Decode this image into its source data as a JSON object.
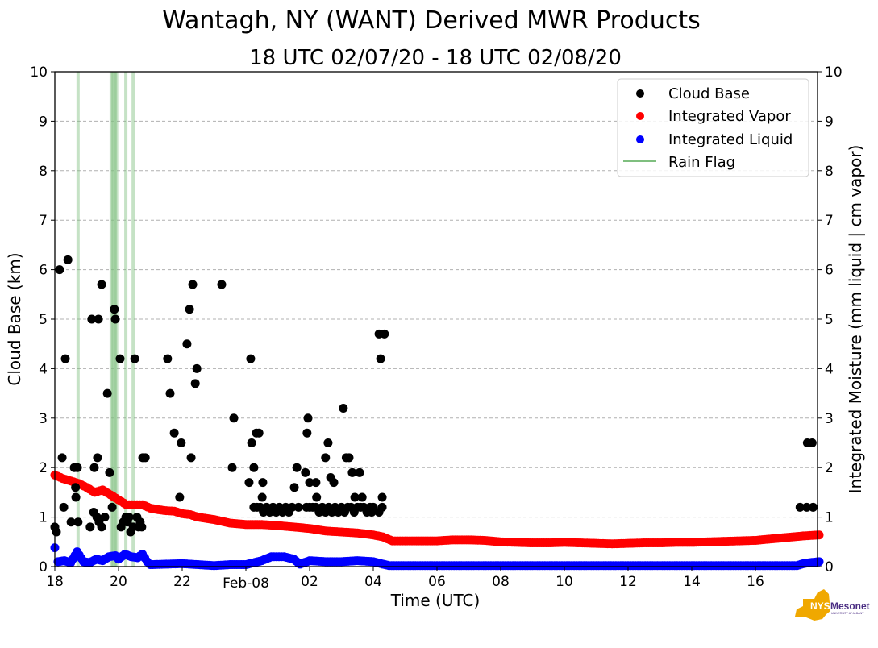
{
  "chart_data": {
    "type": "scatter",
    "title": "Wantagh, NY (WANT) Derived MWR Products",
    "subtitle": "18 UTC 02/07/20 - 18 UTC 02/08/20",
    "xlabel": "Time (UTC)",
    "ylabel_left": "Cloud Base (km)",
    "ylabel_right": "Integrated Moisture (mm liquid | cm vapor)",
    "x_unit": "hours after 18 UTC 02/07/20",
    "xlim": [
      0,
      24
    ],
    "ylim_left": [
      0,
      10
    ],
    "ylim_right": [
      0,
      10
    ],
    "x_ticks": [
      {
        "value": 0,
        "label": "18"
      },
      {
        "value": 2,
        "label": "20"
      },
      {
        "value": 4,
        "label": "22"
      },
      {
        "value": 6,
        "label": "Feb-08"
      },
      {
        "value": 8,
        "label": "02"
      },
      {
        "value": 10,
        "label": "04"
      },
      {
        "value": 12,
        "label": "06"
      },
      {
        "value": 14,
        "label": "08"
      },
      {
        "value": 16,
        "label": "10"
      },
      {
        "value": 18,
        "label": "12"
      },
      {
        "value": 20,
        "label": "14"
      },
      {
        "value": 22,
        "label": "16"
      }
    ],
    "y_ticks": [
      0,
      1,
      2,
      3,
      4,
      5,
      6,
      7,
      8,
      9,
      10
    ],
    "grid": "horizontal dashed",
    "legend_position": "top-right",
    "legend": [
      {
        "label": "Cloud Base",
        "kind": "marker",
        "color": "#000000"
      },
      {
        "label": "Integrated Vapor",
        "kind": "marker",
        "color": "#ff0000"
      },
      {
        "label": "Integrated Liquid",
        "kind": "marker",
        "color": "#0000ff"
      },
      {
        "label": "Rain Flag",
        "kind": "line",
        "color": "#7fbf7f"
      }
    ],
    "rain_flag_hours": [
      0.73,
      1.77,
      1.82,
      1.86,
      1.9,
      1.94,
      2.23,
      2.46
    ],
    "series": [
      {
        "name": "Cloud Base",
        "color": "#000000",
        "axis": "left",
        "points": [
          [
            0.0,
            0.8
          ],
          [
            0.05,
            0.7
          ],
          [
            0.15,
            6.0
          ],
          [
            0.23,
            2.2
          ],
          [
            0.28,
            1.2
          ],
          [
            0.33,
            4.2
          ],
          [
            0.41,
            6.2
          ],
          [
            0.51,
            0.9
          ],
          [
            0.61,
            2.0
          ],
          [
            0.65,
            1.6
          ],
          [
            0.66,
            1.4
          ],
          [
            0.71,
            2.0
          ],
          [
            0.73,
            0.9
          ],
          [
            1.11,
            0.8
          ],
          [
            1.16,
            5.0
          ],
          [
            1.24,
            2.0
          ],
          [
            1.22,
            1.1
          ],
          [
            1.34,
            2.2
          ],
          [
            1.32,
            1.0
          ],
          [
            1.37,
            5.0
          ],
          [
            1.39,
            0.9
          ],
          [
            1.47,
            5.7
          ],
          [
            1.47,
            0.8
          ],
          [
            1.57,
            1.0
          ],
          [
            1.65,
            3.5
          ],
          [
            1.72,
            1.9
          ],
          [
            1.8,
            1.2
          ],
          [
            1.87,
            5.2
          ],
          [
            1.9,
            5.0
          ],
          [
            2.05,
            4.2
          ],
          [
            2.08,
            0.8
          ],
          [
            2.15,
            0.9
          ],
          [
            2.23,
            1.0
          ],
          [
            2.28,
            0.9
          ],
          [
            2.33,
            1.0
          ],
          [
            2.38,
            0.7
          ],
          [
            2.46,
            0.8
          ],
          [
            2.51,
            4.2
          ],
          [
            2.58,
            1.0
          ],
          [
            2.63,
            0.8
          ],
          [
            2.68,
            0.9
          ],
          [
            2.73,
            0.8
          ],
          [
            2.76,
            2.2
          ],
          [
            2.84,
            2.2
          ],
          [
            3.54,
            4.2
          ],
          [
            3.62,
            3.5
          ],
          [
            3.75,
            2.7
          ],
          [
            3.92,
            1.4
          ],
          [
            3.97,
            2.5
          ],
          [
            4.15,
            4.5
          ],
          [
            4.23,
            5.2
          ],
          [
            4.28,
            2.2
          ],
          [
            4.33,
            5.7
          ],
          [
            4.41,
            3.7
          ],
          [
            4.46,
            4.0
          ],
          [
            5.24,
            5.7
          ],
          [
            5.57,
            2.0
          ],
          [
            5.62,
            3.0
          ],
          [
            6.1,
            1.7
          ],
          [
            6.15,
            4.2
          ],
          [
            6.18,
            2.5
          ],
          [
            6.25,
            2.0
          ],
          [
            6.33,
            2.7
          ],
          [
            6.41,
            2.7
          ],
          [
            6.51,
            1.4
          ],
          [
            6.53,
            1.7
          ],
          [
            6.25,
            1.2
          ],
          [
            6.35,
            1.2
          ],
          [
            6.45,
            1.2
          ],
          [
            6.55,
            1.1
          ],
          [
            6.65,
            1.2
          ],
          [
            6.75,
            1.1
          ],
          [
            6.85,
            1.2
          ],
          [
            6.95,
            1.1
          ],
          [
            7.05,
            1.2
          ],
          [
            7.15,
            1.1
          ],
          [
            7.25,
            1.2
          ],
          [
            7.35,
            1.1
          ],
          [
            7.45,
            1.2
          ],
          [
            7.52,
            1.6
          ],
          [
            7.6,
            2.0
          ],
          [
            7.65,
            1.2
          ],
          [
            7.87,
            1.9
          ],
          [
            7.95,
            3.0
          ],
          [
            7.92,
            2.7
          ],
          [
            8.0,
            1.7
          ],
          [
            7.9,
            1.2
          ],
          [
            8.0,
            1.2
          ],
          [
            8.1,
            1.2
          ],
          [
            8.2,
            1.2
          ],
          [
            8.3,
            1.1
          ],
          [
            8.2,
            1.7
          ],
          [
            8.22,
            1.4
          ],
          [
            8.4,
            1.2
          ],
          [
            8.5,
            1.1
          ],
          [
            8.6,
            1.2
          ],
          [
            8.7,
            1.1
          ],
          [
            8.8,
            1.2
          ],
          [
            8.5,
            2.2
          ],
          [
            8.58,
            2.5
          ],
          [
            8.66,
            1.8
          ],
          [
            8.76,
            1.7
          ],
          [
            8.9,
            1.1
          ],
          [
            9.0,
            1.2
          ],
          [
            9.06,
            3.2
          ],
          [
            9.1,
            1.1
          ],
          [
            9.15,
            2.2
          ],
          [
            9.24,
            2.2
          ],
          [
            9.2,
            1.2
          ],
          [
            9.3,
            1.2
          ],
          [
            9.34,
            1.9
          ],
          [
            9.4,
            1.1
          ],
          [
            9.57,
            1.9
          ],
          [
            9.5,
            1.2
          ],
          [
            9.42,
            1.4
          ],
          [
            9.65,
            1.4
          ],
          [
            9.6,
            1.2
          ],
          [
            9.7,
            1.2
          ],
          [
            9.8,
            1.1
          ],
          [
            9.9,
            1.2
          ],
          [
            9.95,
            1.1
          ],
          [
            10.0,
            1.2
          ],
          [
            10.18,
            1.1
          ],
          [
            10.18,
            4.7
          ],
          [
            10.35,
            4.7
          ],
          [
            10.23,
            4.2
          ],
          [
            10.28,
            1.4
          ],
          [
            10.28,
            1.2
          ],
          [
            23.4,
            1.2
          ],
          [
            23.63,
            2.5
          ],
          [
            23.78,
            2.5
          ],
          [
            23.61,
            1.2
          ],
          [
            23.81,
            1.2
          ]
        ]
      },
      {
        "name": "Integrated Vapor",
        "color": "#ff0000",
        "axis": "right",
        "points": [
          [
            0.0,
            1.85
          ],
          [
            0.25,
            1.78
          ],
          [
            0.5,
            1.73
          ],
          [
            0.75,
            1.68
          ],
          [
            1.0,
            1.6
          ],
          [
            1.25,
            1.5
          ],
          [
            1.5,
            1.55
          ],
          [
            1.75,
            1.45
          ],
          [
            2.0,
            1.35
          ],
          [
            2.25,
            1.25
          ],
          [
            2.5,
            1.25
          ],
          [
            2.75,
            1.25
          ],
          [
            3.0,
            1.18
          ],
          [
            3.25,
            1.15
          ],
          [
            3.5,
            1.13
          ],
          [
            3.75,
            1.12
          ],
          [
            4.0,
            1.07
          ],
          [
            4.25,
            1.05
          ],
          [
            4.5,
            1.0
          ],
          [
            5.0,
            0.95
          ],
          [
            5.5,
            0.88
          ],
          [
            6.0,
            0.85
          ],
          [
            6.5,
            0.85
          ],
          [
            7.0,
            0.83
          ],
          [
            7.5,
            0.8
          ],
          [
            8.0,
            0.77
          ],
          [
            8.5,
            0.72
          ],
          [
            9.0,
            0.7
          ],
          [
            9.5,
            0.68
          ],
          [
            10.0,
            0.64
          ],
          [
            10.3,
            0.6
          ],
          [
            10.6,
            0.52
          ],
          [
            11.0,
            0.52
          ],
          [
            11.5,
            0.52
          ],
          [
            12.0,
            0.52
          ],
          [
            12.5,
            0.54
          ],
          [
            13.0,
            0.54
          ],
          [
            13.5,
            0.53
          ],
          [
            14.0,
            0.5
          ],
          [
            14.5,
            0.49
          ],
          [
            15.0,
            0.48
          ],
          [
            15.5,
            0.48
          ],
          [
            16.0,
            0.49
          ],
          [
            16.5,
            0.48
          ],
          [
            17.0,
            0.47
          ],
          [
            17.5,
            0.46
          ],
          [
            18.0,
            0.47
          ],
          [
            18.5,
            0.48
          ],
          [
            19.0,
            0.48
          ],
          [
            19.5,
            0.49
          ],
          [
            20.0,
            0.49
          ],
          [
            20.5,
            0.5
          ],
          [
            21.0,
            0.51
          ],
          [
            21.5,
            0.52
          ],
          [
            22.0,
            0.53
          ],
          [
            22.5,
            0.56
          ],
          [
            23.0,
            0.59
          ],
          [
            23.5,
            0.62
          ],
          [
            24.0,
            0.64
          ]
        ]
      },
      {
        "name": "Integrated Liquid",
        "color": "#0000ff",
        "axis": "right",
        "points": [
          [
            0.0,
            0.38
          ],
          [
            0.1,
            0.1
          ],
          [
            0.3,
            0.12
          ],
          [
            0.5,
            0.08
          ],
          [
            0.7,
            0.3
          ],
          [
            0.9,
            0.1
          ],
          [
            1.1,
            0.08
          ],
          [
            1.3,
            0.15
          ],
          [
            1.5,
            0.12
          ],
          [
            1.7,
            0.2
          ],
          [
            1.9,
            0.22
          ],
          [
            2.0,
            0.15
          ],
          [
            2.2,
            0.25
          ],
          [
            2.4,
            0.2
          ],
          [
            2.6,
            0.18
          ],
          [
            2.75,
            0.25
          ],
          [
            2.9,
            0.1
          ],
          [
            3.0,
            0.04
          ],
          [
            3.5,
            0.05
          ],
          [
            4.0,
            0.06
          ],
          [
            4.5,
            0.04
          ],
          [
            5.0,
            0.02
          ],
          [
            5.5,
            0.04
          ],
          [
            6.0,
            0.04
          ],
          [
            6.5,
            0.12
          ],
          [
            6.8,
            0.2
          ],
          [
            7.2,
            0.2
          ],
          [
            7.5,
            0.15
          ],
          [
            7.7,
            0.05
          ],
          [
            8.0,
            0.12
          ],
          [
            8.5,
            0.1
          ],
          [
            9.0,
            0.1
          ],
          [
            9.5,
            0.12
          ],
          [
            10.0,
            0.1
          ],
          [
            10.3,
            0.05
          ],
          [
            10.5,
            0.02
          ],
          [
            12.0,
            0.02
          ],
          [
            14.0,
            0.02
          ],
          [
            16.0,
            0.02
          ],
          [
            18.0,
            0.02
          ],
          [
            20.0,
            0.02
          ],
          [
            22.0,
            0.02
          ],
          [
            23.3,
            0.02
          ],
          [
            23.5,
            0.06
          ],
          [
            23.7,
            0.08
          ],
          [
            24.0,
            0.1
          ]
        ]
      }
    ]
  },
  "logo": {
    "text_nys": "NYS",
    "text_mesonet": "Mesonet",
    "text_sub": "UNIVERSITY AT ALBANY",
    "color_state": "#f0a800",
    "color_text": "#4b2e83"
  }
}
